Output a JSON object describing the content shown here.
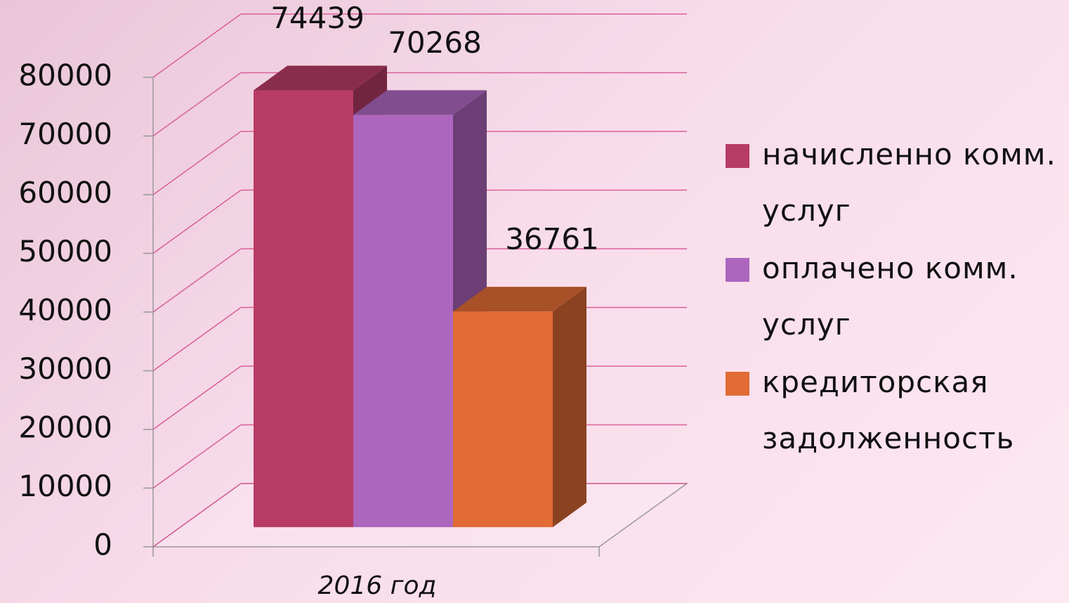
{
  "chart_data": {
    "type": "bar3d",
    "categories": [
      "2016 год"
    ],
    "series": [
      {
        "name": "начисленно комм. услуг",
        "color": "#b83b65",
        "values": [
          74439
        ]
      },
      {
        "name": "оплачено комм. услуг",
        "color": "#ac66bd",
        "values": [
          70268
        ]
      },
      {
        "name": "кредиторская задолженность",
        "color": "#e06b35",
        "values": [
          36761
        ]
      }
    ],
    "ylim": [
      0,
      80000
    ],
    "yticks": [
      0,
      10000,
      20000,
      30000,
      40000,
      50000,
      60000,
      70000,
      80000
    ],
    "grid": true,
    "legend": "right"
  }
}
